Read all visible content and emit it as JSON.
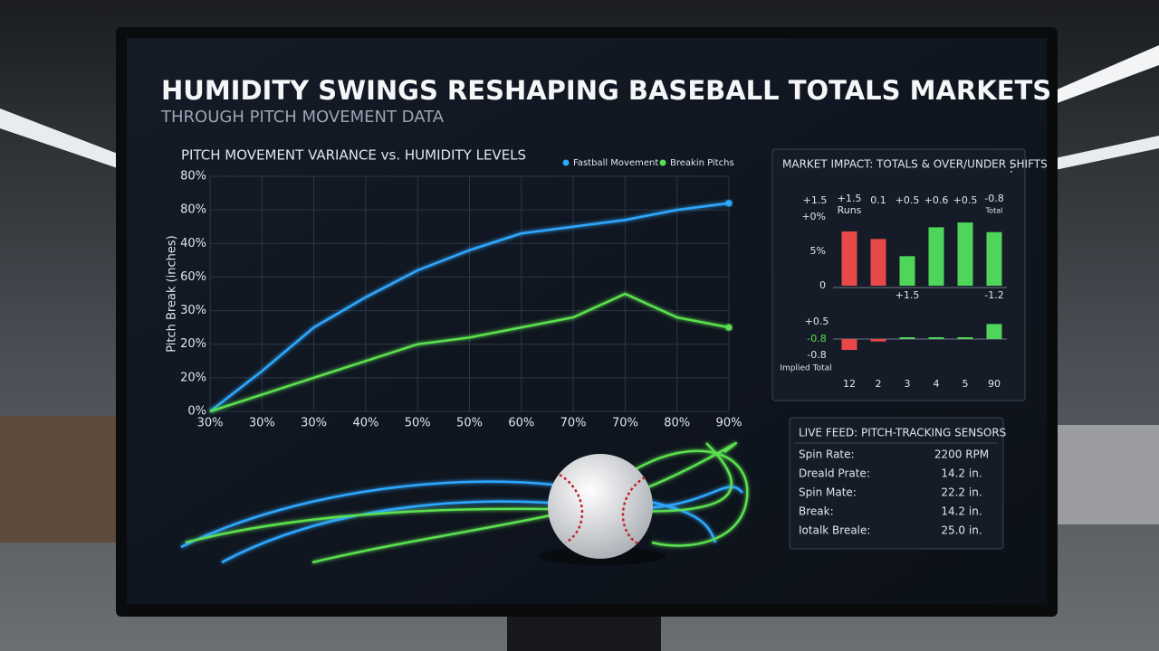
{
  "header": {
    "title": "HUMIDITY SWINGS RESHAPING BASEBALL TOTALS MARKETS",
    "subtitle": "THROUGH PITCH MOVEMENT DATA"
  },
  "chart_data": [
    {
      "type": "line",
      "title": "PITCH MOVEMENT VARIANCE vs. HUMIDITY LEVELS",
      "y_label": "Pitch Break (inches)",
      "categories": [
        "30%",
        "30%",
        "30%",
        "40%",
        "50%",
        "50%",
        "60%",
        "70%",
        "70%",
        "80%",
        "90%"
      ],
      "series": [
        {
          "name": "Fastball Movement",
          "color": "#2fa8ff",
          "values": [
            0,
            1.2,
            2.5,
            3.4,
            4.2,
            4.8,
            5.3,
            5.5,
            5.7,
            6.0,
            6.2
          ]
        },
        {
          "name": "Breakin Pitchs",
          "color": "#5be04f",
          "values": [
            0,
            0.5,
            1.0,
            1.5,
            2.0,
            2.2,
            2.5,
            2.8,
            3.5,
            2.8,
            2.5
          ]
        }
      ],
      "ylim": [
        0,
        7
      ],
      "yticks": [
        {
          "value": 0,
          "label": "0%"
        },
        {
          "value": 1,
          "label": "20%"
        },
        {
          "value": 2,
          "label": "20%"
        },
        {
          "value": 3,
          "label": "30%"
        },
        {
          "value": 4,
          "label": "60%"
        },
        {
          "value": 5,
          "label": "40%"
        },
        {
          "value": 6,
          "label": "80%"
        },
        {
          "value": 7,
          "label": "80%"
        }
      ],
      "grid": true
    },
    {
      "type": "bar",
      "title": "MARKET IMPACT: TOTALS & OVER/UNDER SHIFTS",
      "annotations": [
        "+1.5",
        "+1.5",
        "Runs",
        "0.1",
        "+0.5",
        "+0.6",
        "+0.5",
        "-0.8",
        "Total",
        "+1.5",
        "-1.2"
      ],
      "values": [
        7.9,
        6.8,
        4.3,
        8.5,
        9.2,
        7.8
      ],
      "colors": [
        "#e84848",
        "#e84848",
        "#4fd65a",
        "#4fd65a",
        "#4fd65a",
        "#4fd65a"
      ],
      "ylim": [
        0,
        10
      ],
      "yticks": [
        0,
        {
          "value": 5,
          "label": "5%"
        },
        {
          "value": 10,
          "label": "+0%"
        }
      ]
    },
    {
      "type": "bar",
      "y_label": "Implied Total",
      "annotations": [
        "+0.5",
        "-0.8",
        "-0.8"
      ],
      "categories": [
        "12",
        "2",
        "3",
        "4",
        "5",
        "90"
      ],
      "values": [
        -1.8,
        -0.4,
        0.3,
        0.3,
        0.3,
        2.5
      ],
      "colors": [
        "#e84848",
        "#e84848",
        "#4fd65a",
        "#4fd65a",
        "#4fd65a",
        "#4fd65a"
      ],
      "ylim": [
        -3,
        3
      ]
    }
  ],
  "live_feed": {
    "title": "LIVE FEED: PITCH-TRACKING SENSORS",
    "rows": [
      [
        "Spin Rate:",
        "2200 RPM"
      ],
      [
        "Dreald Prate:",
        "14.2 in."
      ],
      [
        "Spin Mate:",
        "22.2 in."
      ],
      [
        "Break:",
        "14.2 in."
      ],
      [
        "Iotalk Breale:",
        "25.0 in."
      ]
    ]
  }
}
